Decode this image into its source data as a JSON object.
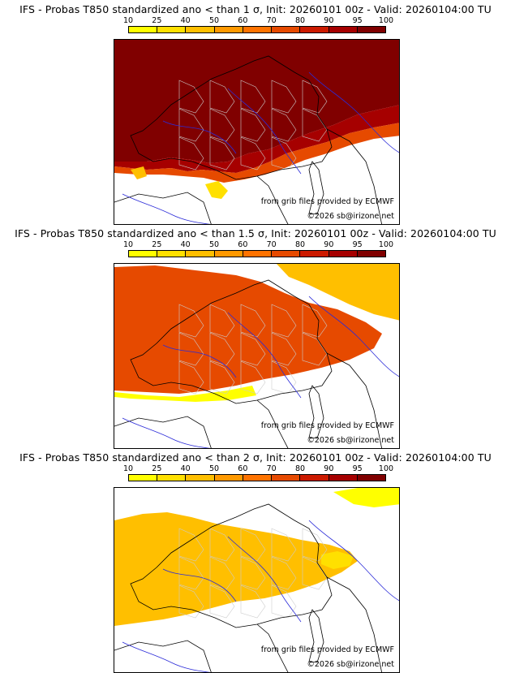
{
  "colorbar": {
    "ticks": [
      "10",
      "25",
      "40",
      "50",
      "60",
      "70",
      "80",
      "90",
      "95",
      "100"
    ],
    "colors": [
      "#ffff00",
      "#ffe000",
      "#ffbf00",
      "#ff9900",
      "#ff7300",
      "#e64a00",
      "#cc1a00",
      "#a60000",
      "#800000"
    ]
  },
  "panels": [
    {
      "title": "IFS - Probas T850  standardized ano < than 1 σ, Init: 20260101 00z - Valid: 20260104:00 TU",
      "coverage": "high"
    },
    {
      "title": "IFS - Probas T850  standardized ano < than 1.5 σ, Init: 20260101 00z - Valid: 20260104:00 TU",
      "coverage": "medium"
    },
    {
      "title": "IFS - Probas T850  standardized ano < than 2 σ, Init: 20260101 00z - Valid: 20260104:00 TU",
      "coverage": "low"
    }
  ],
  "credits": {
    "source": "from grib files provided by ECMWF",
    "copyright": "©2026 sb@irizone.net"
  },
  "palette": {
    "land_line": "#000000",
    "river": "#2b2bd8",
    "border_inner": "#cccccc",
    "sea": "#ffffff"
  }
}
